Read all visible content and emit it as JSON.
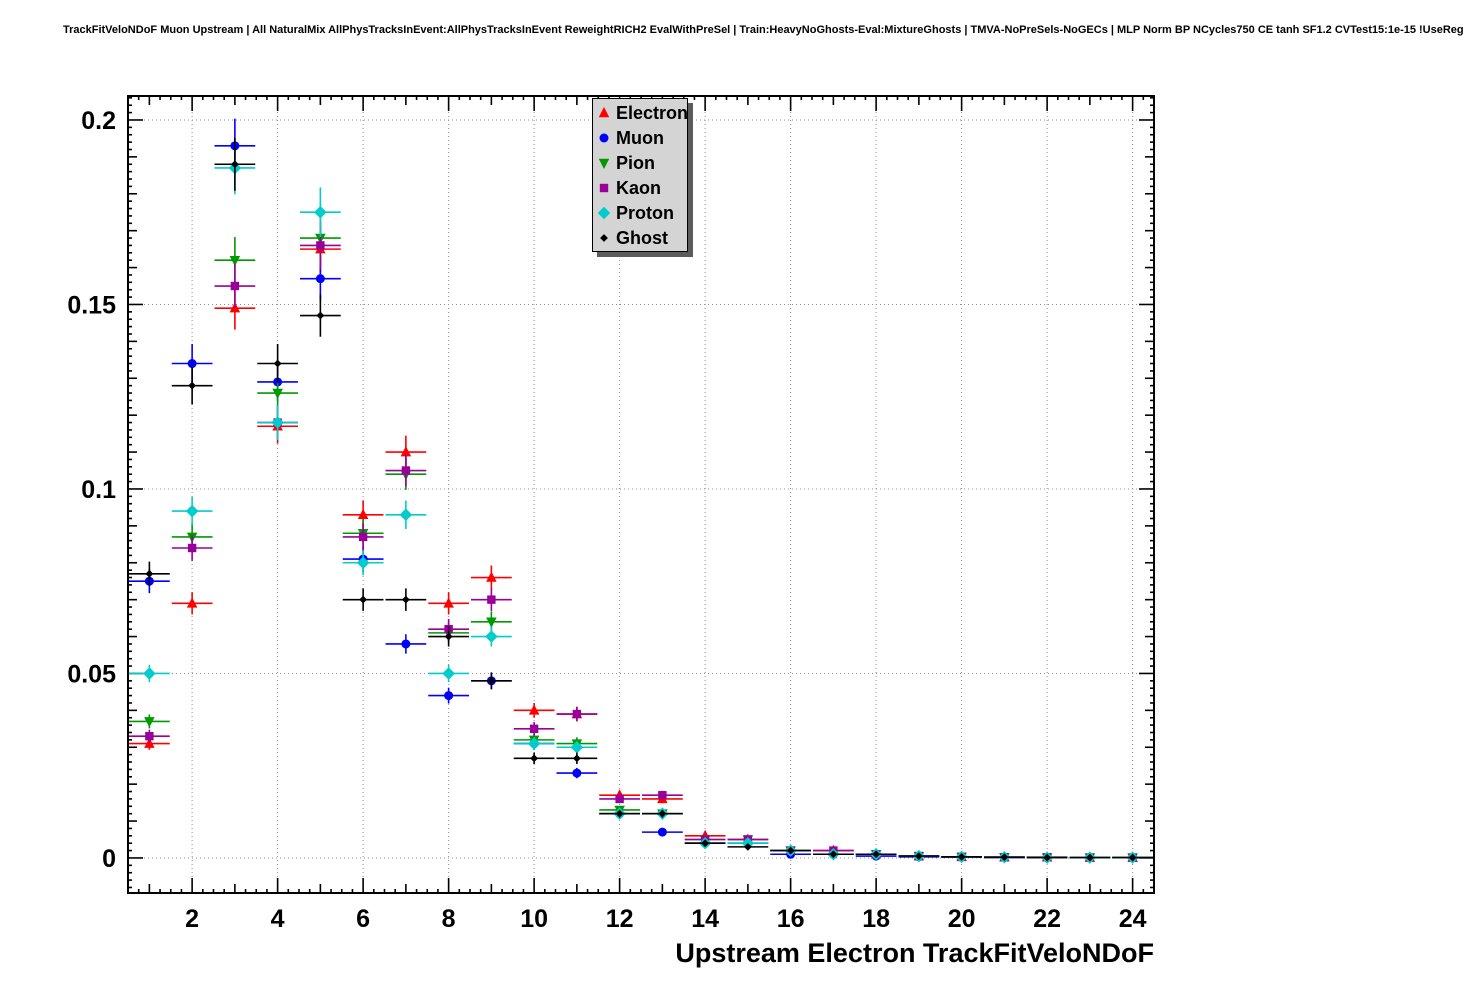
{
  "chart_data": {
    "type": "scatter",
    "title": "TrackFitVeloNDoF Muon Upstream | All NaturalMix AllPhysTracksInEvent:AllPhysTracksInEvent ReweightRICH2 EvalWithPreSel | Train:HeavyNoGhosts-Eval:MixtureGhosts | TMVA-NoPreSels-NoGECs | MLP Norm BP NCycles750 CE tanh SF1.2 CVTest15:1e-15 !UseReg",
    "xlabel": "Upstream Electron TrackFitVeloNDoF",
    "ylabel": "",
    "grid": true,
    "legend_position": "top-center",
    "xlim": [
      0.5,
      24.5
    ],
    "ylim": [
      -0.0095,
      0.2065
    ],
    "xticks": [
      2,
      4,
      6,
      8,
      10,
      12,
      14,
      16,
      18,
      20,
      22,
      24
    ],
    "yticks": [
      {
        "value": 0,
        "label": "0"
      },
      {
        "value": 0.05,
        "label": "0.05"
      },
      {
        "value": 0.1,
        "label": "0.1"
      },
      {
        "value": 0.15,
        "label": "0.15"
      },
      {
        "value": 0.2,
        "label": "0.2"
      }
    ],
    "x": [
      1,
      2,
      3,
      4,
      5,
      6,
      7,
      8,
      9,
      10,
      11,
      12,
      13,
      14,
      15,
      16,
      17,
      18,
      19,
      20,
      21,
      22,
      23,
      24
    ],
    "series": [
      {
        "name": "Electron",
        "color": "#ff0000",
        "marker": "triangle-up",
        "values": [
          0.031,
          0.069,
          0.149,
          0.117,
          0.165,
          0.093,
          0.11,
          0.069,
          0.076,
          0.04,
          0.039,
          0.017,
          0.016,
          0.006,
          0.005,
          0.002,
          0.002,
          0.001,
          0.0005,
          0.0003,
          0.0002,
          0.0002,
          0.0001,
          0.0001
        ]
      },
      {
        "name": "Muon",
        "color": "#0000ff",
        "marker": "circle",
        "values": [
          0.075,
          0.134,
          0.193,
          0.129,
          0.157,
          0.081,
          0.058,
          0.044,
          0.048,
          0.031,
          0.023,
          0.012,
          0.007,
          0.004,
          0.004,
          0.001,
          0.001,
          0.0005,
          0.0003,
          0.0002,
          0.0001,
          0.0001,
          0.0001,
          0.0001
        ]
      },
      {
        "name": "Pion",
        "color": "#009900",
        "marker": "triangle-down",
        "values": [
          0.037,
          0.087,
          0.162,
          0.126,
          0.168,
          0.088,
          0.104,
          0.061,
          0.064,
          0.032,
          0.031,
          0.013,
          0.012,
          0.005,
          0.005,
          0.002,
          0.001,
          0.001,
          0.0005,
          0.0003,
          0.0002,
          0.0001,
          0.0001,
          0.0001
        ]
      },
      {
        "name": "Kaon",
        "color": "#990099",
        "marker": "square",
        "values": [
          0.033,
          0.084,
          0.155,
          0.118,
          0.166,
          0.087,
          0.105,
          0.062,
          0.07,
          0.035,
          0.039,
          0.016,
          0.017,
          0.005,
          0.005,
          0.002,
          0.002,
          0.001,
          0.0005,
          0.0003,
          0.0002,
          0.0002,
          0.0001,
          0.0001
        ]
      },
      {
        "name": "Proton",
        "color": "#00cccc",
        "marker": "diamond",
        "values": [
          0.05,
          0.094,
          0.187,
          0.118,
          0.175,
          0.08,
          0.093,
          0.05,
          0.06,
          0.031,
          0.03,
          0.012,
          0.012,
          0.004,
          0.004,
          0.002,
          0.001,
          0.001,
          0.0005,
          0.0003,
          0.0002,
          0.0001,
          0.0001,
          0.0001
        ]
      },
      {
        "name": "Ghost",
        "color": "#000000",
        "marker": "diamond-small",
        "values": [
          0.077,
          0.128,
          0.188,
          0.134,
          0.147,
          0.07,
          0.07,
          0.06,
          0.048,
          0.027,
          0.027,
          0.012,
          0.012,
          0.004,
          0.003,
          0.002,
          0.001,
          0.001,
          0.0005,
          0.0003,
          0.0002,
          0.0001,
          0.0001,
          0.0001
        ]
      }
    ]
  }
}
